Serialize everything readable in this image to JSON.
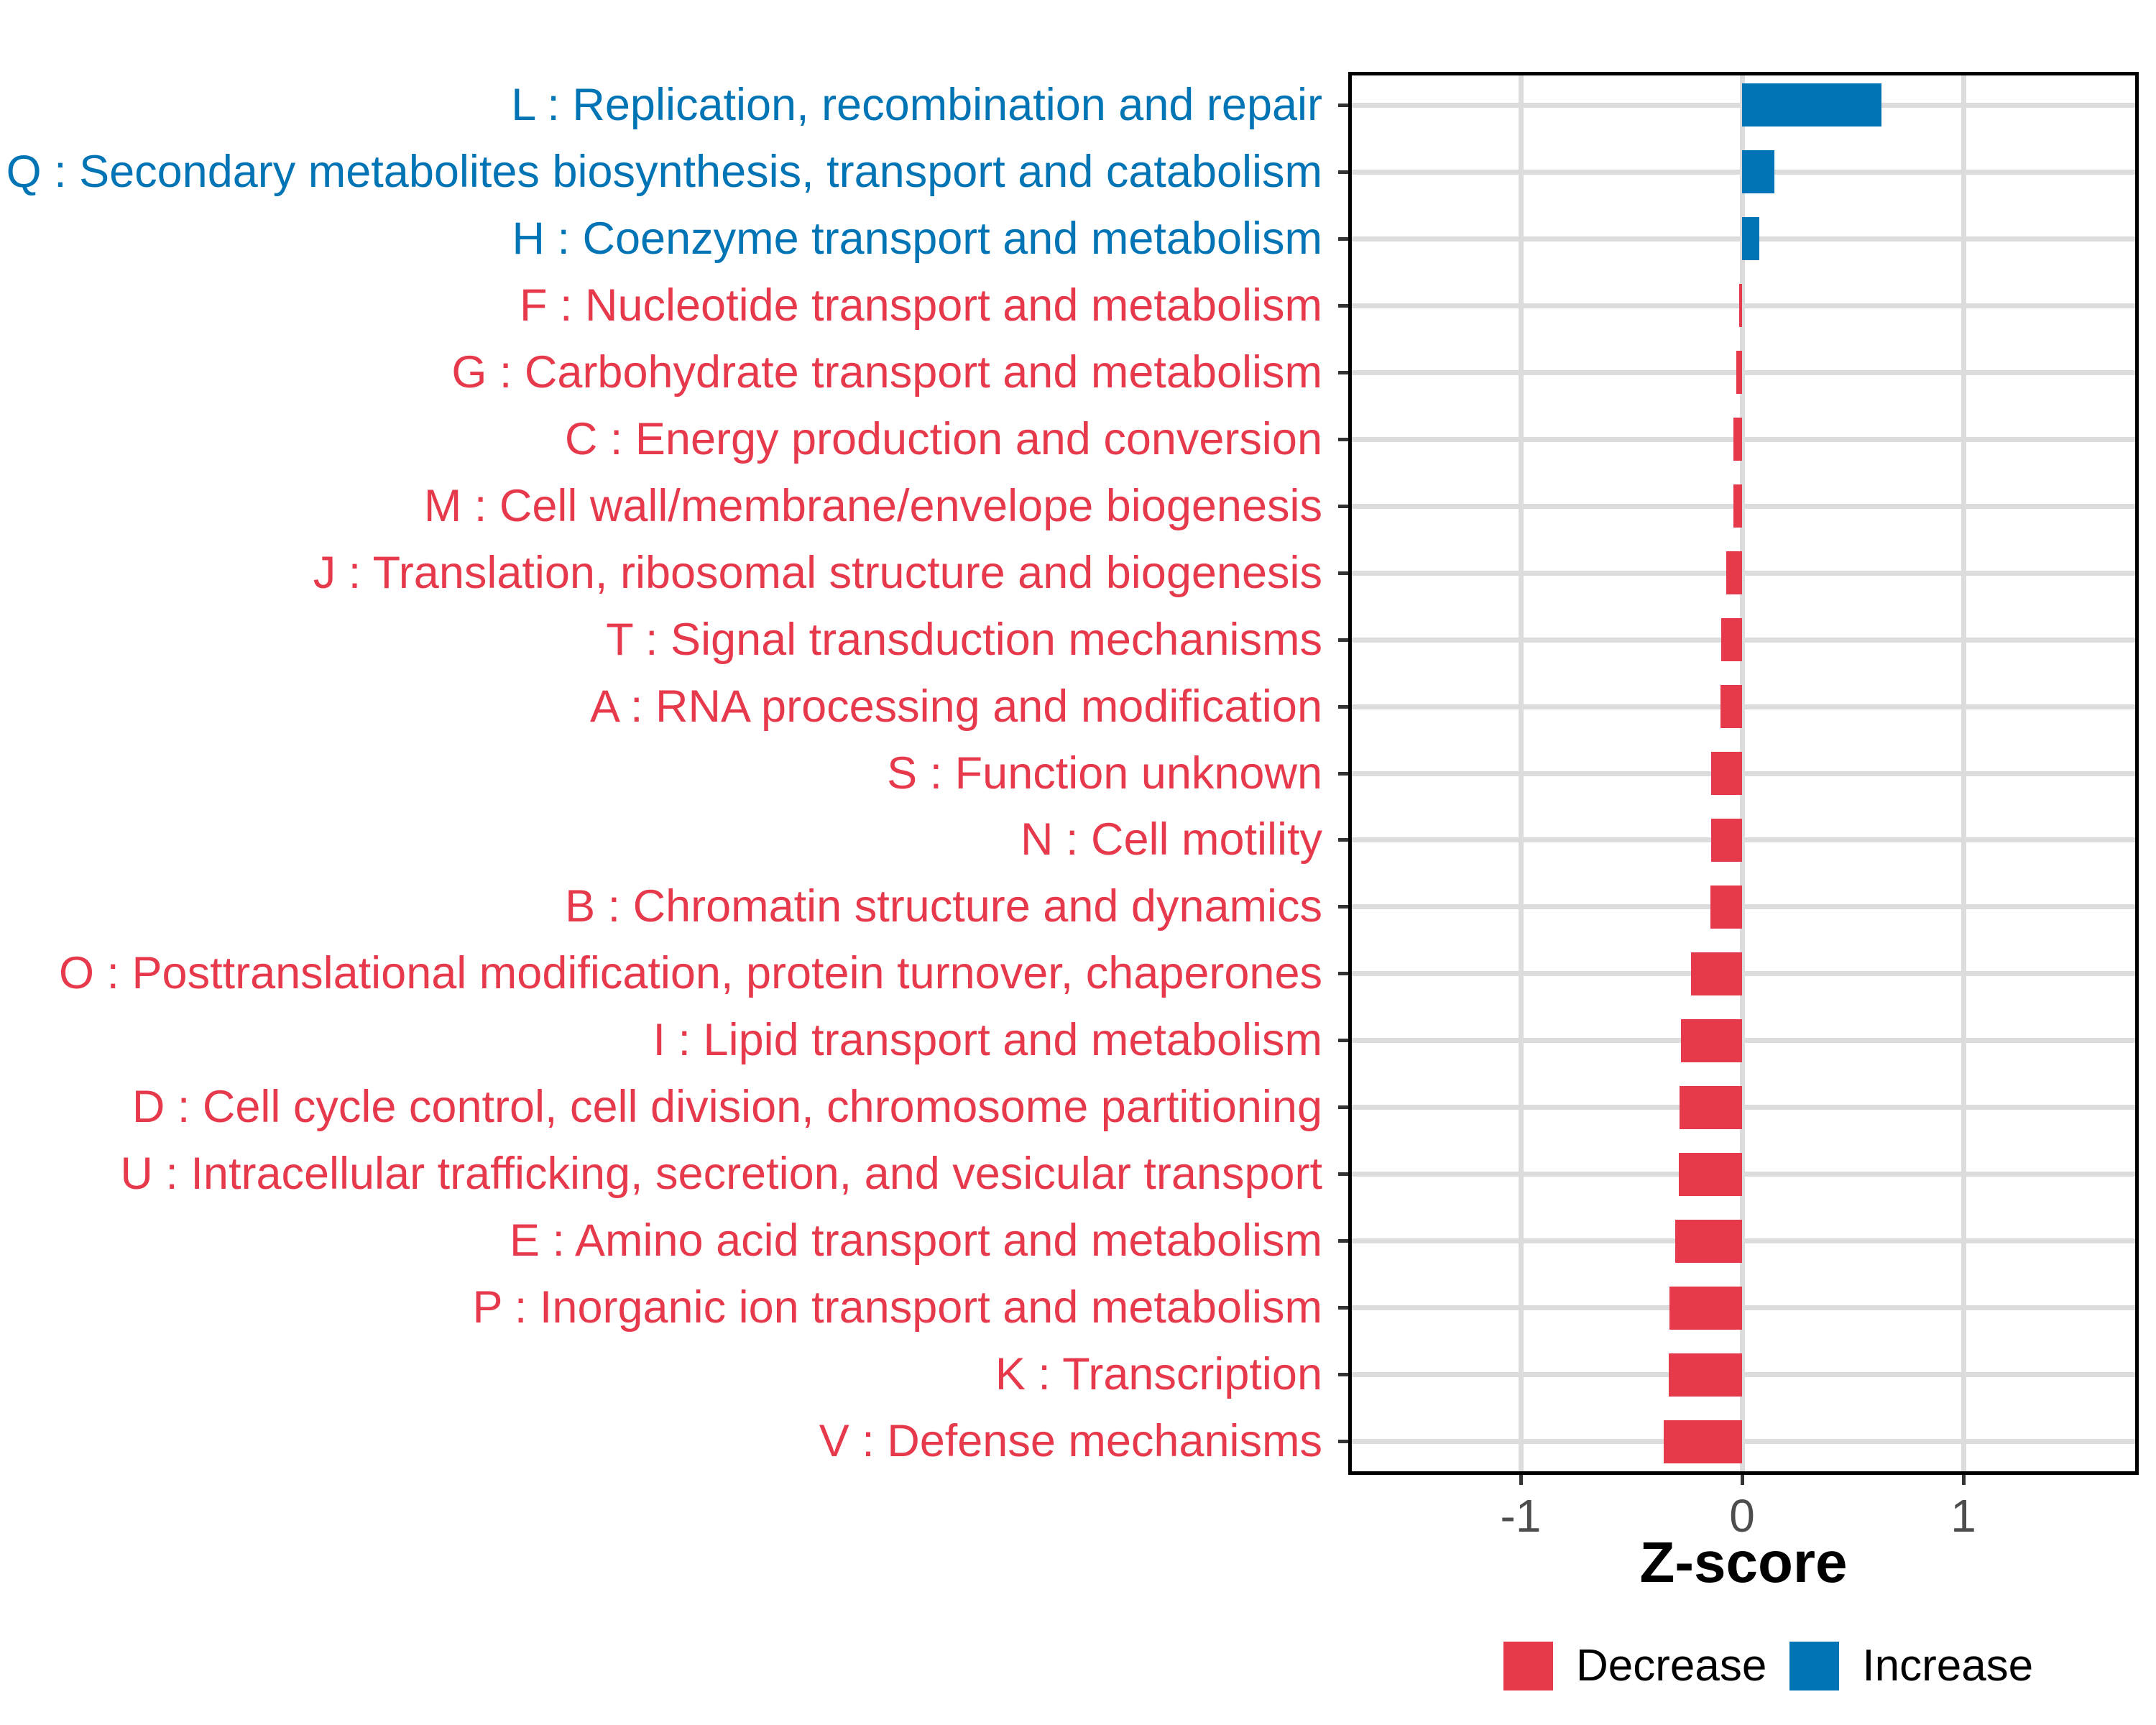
{
  "chart_data": {
    "type": "bar",
    "orientation": "horizontal",
    "title": "",
    "xlabel": "Z-score",
    "ylabel": "",
    "xlim": [
      -1.78,
      1.79
    ],
    "grid": "horizontal per category and vertical at x ticks",
    "legend_position": "bottom",
    "xticks": [
      {
        "value": -1,
        "label": "-1"
      },
      {
        "value": 0,
        "label": "0"
      },
      {
        "value": 1,
        "label": "1"
      }
    ],
    "categories": [
      {
        "label": "L : Replication, recombination and repair",
        "value": 0.63,
        "direction": "increase"
      },
      {
        "label": "Q : Secondary metabolites biosynthesis, transport and catabolism",
        "value": 0.146,
        "direction": "increase"
      },
      {
        "label": "H : Coenzyme transport and metabolism",
        "value": 0.077,
        "direction": "increase"
      },
      {
        "label": "F : Nucleotide transport and metabolism",
        "value": -0.013,
        "direction": "decrease"
      },
      {
        "label": "G : Carbohydrate transport and metabolism",
        "value": -0.027,
        "direction": "decrease"
      },
      {
        "label": "C : Energy production and conversion",
        "value": -0.038,
        "direction": "decrease"
      },
      {
        "label": "M : Cell wall/membrane/envelope biogenesis",
        "value": -0.04,
        "direction": "decrease"
      },
      {
        "label": "J : Translation, ribosomal structure and biogenesis",
        "value": -0.072,
        "direction": "decrease"
      },
      {
        "label": "T : Signal transduction mechanisms",
        "value": -0.095,
        "direction": "decrease"
      },
      {
        "label": "A : RNA processing and modification",
        "value": -0.098,
        "direction": "decrease"
      },
      {
        "label": "S : Function unknown",
        "value": -0.138,
        "direction": "decrease"
      },
      {
        "label": "N : Cell motility",
        "value": -0.14,
        "direction": "decrease"
      },
      {
        "label": "B : Chromatin structure and dynamics",
        "value": -0.142,
        "direction": "decrease"
      },
      {
        "label": "O : Posttranslational modification, protein turnover, chaperones",
        "value": -0.23,
        "direction": "decrease"
      },
      {
        "label": "I : Lipid transport and metabolism",
        "value": -0.276,
        "direction": "decrease"
      },
      {
        "label": "D : Cell cycle control, cell division, chromosome partitioning",
        "value": -0.281,
        "direction": "decrease"
      },
      {
        "label": "U : Intracellular trafficking, secretion, and vesicular transport",
        "value": -0.285,
        "direction": "decrease"
      },
      {
        "label": "E : Amino acid transport and metabolism",
        "value": -0.303,
        "direction": "decrease"
      },
      {
        "label": "P : Inorganic ion transport and metabolism",
        "value": -0.328,
        "direction": "decrease"
      },
      {
        "label": "K : Transcription",
        "value": -0.332,
        "direction": "decrease"
      },
      {
        "label": "V : Defense mechanisms",
        "value": -0.355,
        "direction": "decrease"
      }
    ],
    "legend": [
      {
        "label": "Decrease",
        "color": "#E6394B"
      },
      {
        "label": "Increase",
        "color": "#0074B4"
      }
    ],
    "colors": {
      "decrease": "#E6394B",
      "increase": "#0074B4",
      "gridline": "#DCDCDC",
      "panel_border": "#000000",
      "tick_mark": "#333333",
      "tick_label": "#4D4D4D",
      "axis_title": "#000000"
    }
  }
}
